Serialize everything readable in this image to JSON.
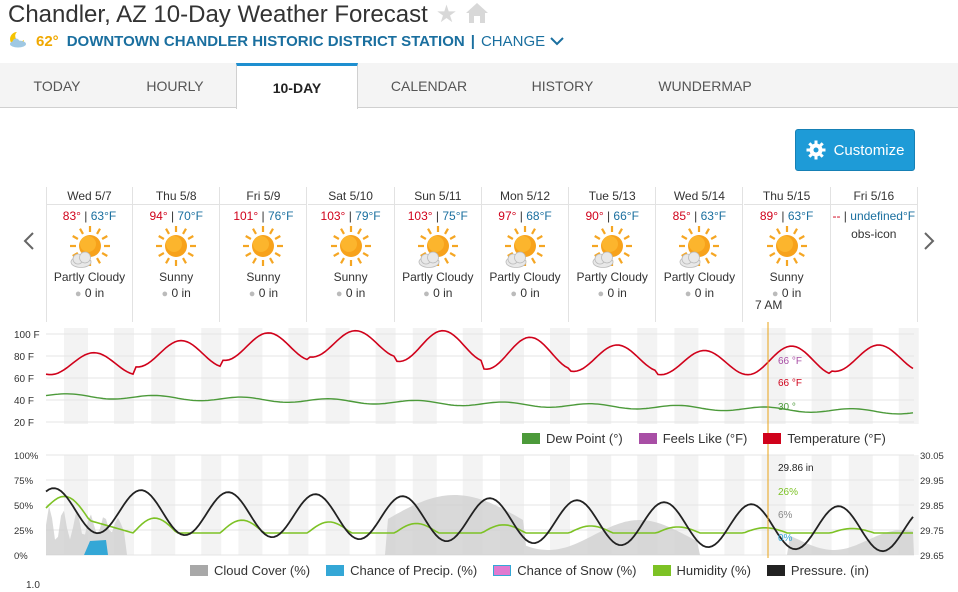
{
  "page": {
    "title": "Chandler, AZ 10-Day Weather Forecast",
    "star_icon": "star-icon",
    "home_icon": "home-icon"
  },
  "station": {
    "icon": "moon-cloud-icon",
    "temp": "62°",
    "name": "DOWNTOWN CHANDLER HISTORIC DISTRICT STATION",
    "separator": "|",
    "change_label": "CHANGE"
  },
  "tabs": [
    {
      "label": "TODAY"
    },
    {
      "label": "HOURLY"
    },
    {
      "label": "10-DAY",
      "active": true
    },
    {
      "label": "CALENDAR"
    },
    {
      "label": "HISTORY"
    },
    {
      "label": "WUNDERMAP"
    }
  ],
  "customize": {
    "label": "Customize",
    "icon": "gear-icon"
  },
  "days": [
    {
      "date": "Wed 5/7",
      "hi": "83°",
      "lo": "63°F",
      "cond": "Partly Cloudy",
      "precip": "0 in",
      "icon": "partly-cloudy"
    },
    {
      "date": "Thu 5/8",
      "hi": "94°",
      "lo": "70°F",
      "cond": "Sunny",
      "precip": "0 in",
      "icon": "sunny"
    },
    {
      "date": "Fri 5/9",
      "hi": "101°",
      "lo": "76°F",
      "cond": "Sunny",
      "precip": "0 in",
      "icon": "sunny"
    },
    {
      "date": "Sat 5/10",
      "hi": "103°",
      "lo": "79°F",
      "cond": "Sunny",
      "precip": "0 in",
      "icon": "sunny"
    },
    {
      "date": "Sun 5/11",
      "hi": "103°",
      "lo": "75°F",
      "cond": "Partly Cloudy",
      "precip": "0 in",
      "icon": "partly-cloudy"
    },
    {
      "date": "Mon 5/12",
      "hi": "97°",
      "lo": "68°F",
      "cond": "Partly Cloudy",
      "precip": "0 in",
      "icon": "partly-cloudy"
    },
    {
      "date": "Tue 5/13",
      "hi": "90°",
      "lo": "66°F",
      "cond": "Partly Cloudy",
      "precip": "0 in",
      "icon": "partly-cloudy"
    },
    {
      "date": "Wed 5/14",
      "hi": "85°",
      "lo": "63°F",
      "cond": "Partly Cloudy",
      "precip": "0 in",
      "icon": "partly-cloudy"
    },
    {
      "date": "Thu 5/15",
      "hi": "89°",
      "lo": "63°F",
      "cond": "Sunny",
      "precip": "0 in",
      "icon": "sunny"
    },
    {
      "date": "Fri 5/16",
      "hi": "--",
      "lo": "undefined°F",
      "obs": "obs-icon",
      "icon": "none"
    }
  ],
  "temp_chart": {
    "y_ticks": [
      "100 F",
      "80 F",
      "60 F",
      "40 F",
      "20 F"
    ],
    "marker_time": "7 AM",
    "marker_values": {
      "feels_like": "66 °F",
      "temperature": "66 °F",
      "dew_point": "30 °"
    },
    "legend": [
      {
        "label": "Dew Point (°)",
        "color": "#4c9a3a"
      },
      {
        "label": "Feels Like (°F)",
        "color": "#a84ea5"
      },
      {
        "label": "Temperature (°F)",
        "color": "#d0021b"
      }
    ]
  },
  "precip_chart": {
    "y_ticks_left": [
      "100%",
      "75%",
      "50%",
      "25%",
      "0%"
    ],
    "y_ticks_right": [
      "30.05",
      "29.95",
      "29.85",
      "29.75",
      "29.65"
    ],
    "marker_values": {
      "pressure": "29.86 in",
      "humidity": "26%",
      "cloud": "6%",
      "precip": "0%"
    },
    "legend": [
      {
        "label": "Cloud Cover (%)",
        "color": "#a8a8a8"
      },
      {
        "label": "Chance of Precip. (%)",
        "color": "#34a7d6"
      },
      {
        "label": "Chance of Snow (%)",
        "color": "#e07ad0"
      },
      {
        "label": "Humidity (%)",
        "color": "#7dc225"
      },
      {
        "label": "Pressure. (in)",
        "color": "#222222"
      }
    ]
  },
  "bottom_tick": "1.0"
}
